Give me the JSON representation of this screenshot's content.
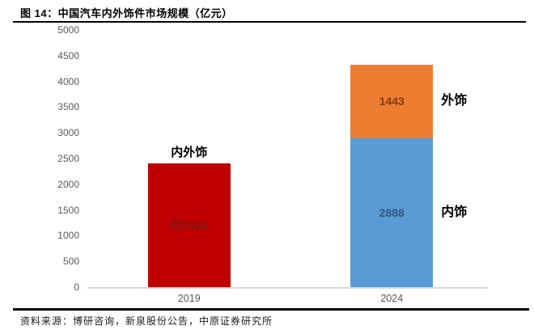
{
  "header": {
    "title": "图 14：中国汽车内外饰件市场规模（亿元）"
  },
  "footer": {
    "source": "资料来源：博研咨询，新泉股份公告，中原证券研究所"
  },
  "chart_data": {
    "type": "bar",
    "stacked": true,
    "title": "中国汽车内外饰件市场规模（亿元）",
    "unit": "亿元",
    "categories": [
      "2019",
      "2024"
    ],
    "ylim": [
      0,
      5000
    ],
    "ytick_step": 500,
    "grid": false,
    "legend_position": "none",
    "axis_line_color": "#d9d9d9",
    "bars": [
      {
        "category": "2019",
        "annotation_above": "内外饰",
        "segments": [
          {
            "name": "内外饰",
            "value": 2400,
            "label": "约2400",
            "color": "#c00000",
            "label_color": "#7f1516"
          }
        ]
      },
      {
        "category": "2024",
        "segments": [
          {
            "name": "内饰",
            "value": 2888,
            "label": "2888",
            "color": "#5b9bd5",
            "label_color": "#2e5879",
            "side_label": "内饰"
          },
          {
            "name": "外饰",
            "value": 1443,
            "label": "1443",
            "color": "#ed7d31",
            "label_color": "#843c0c",
            "side_label": "外饰"
          }
        ]
      }
    ],
    "colors": {
      "red": "#c00000",
      "blue": "#5b9bd5",
      "orange": "#ed7d31"
    }
  }
}
